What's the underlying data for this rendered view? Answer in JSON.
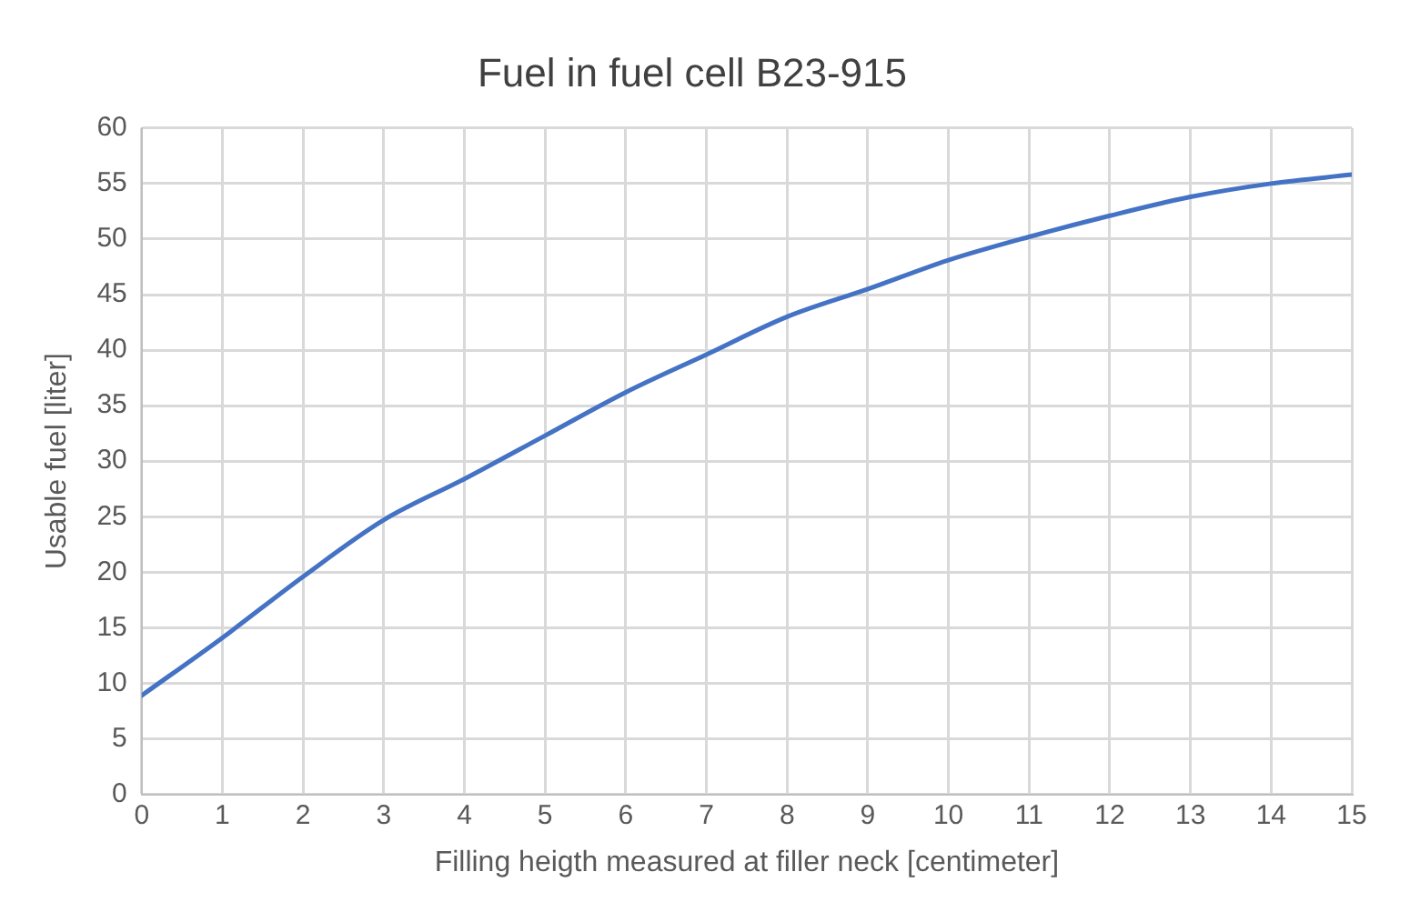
{
  "chart_data": {
    "type": "line",
    "title": "Fuel in fuel cell B23-915",
    "xlabel": "Filling heigth measured at filler neck [centimeter]",
    "ylabel": "Usable fuel [liter]",
    "x": [
      0,
      1,
      2,
      3,
      4,
      5,
      6,
      7,
      8,
      9,
      10,
      11,
      12,
      13,
      14,
      15
    ],
    "series": [
      {
        "color": "#4472c4",
        "values": [
          8.9,
          14.1,
          19.6,
          24.7,
          28.4,
          32.3,
          36.2,
          39.6,
          43,
          45.5,
          48.1,
          50.2,
          52.1,
          53.8,
          55,
          55.8
        ]
      }
    ],
    "xlim": [
      0,
      15
    ],
    "xticks": [
      0,
      1,
      2,
      3,
      4,
      5,
      6,
      7,
      8,
      9,
      10,
      11,
      12,
      13,
      14,
      15
    ],
    "ylim": [
      0,
      60
    ],
    "yticks": [
      0,
      5,
      10,
      15,
      20,
      25,
      30,
      35,
      40,
      45,
      50,
      55,
      60
    ],
    "grid": true,
    "legend": false,
    "marker": "none",
    "line_style": "solid"
  }
}
